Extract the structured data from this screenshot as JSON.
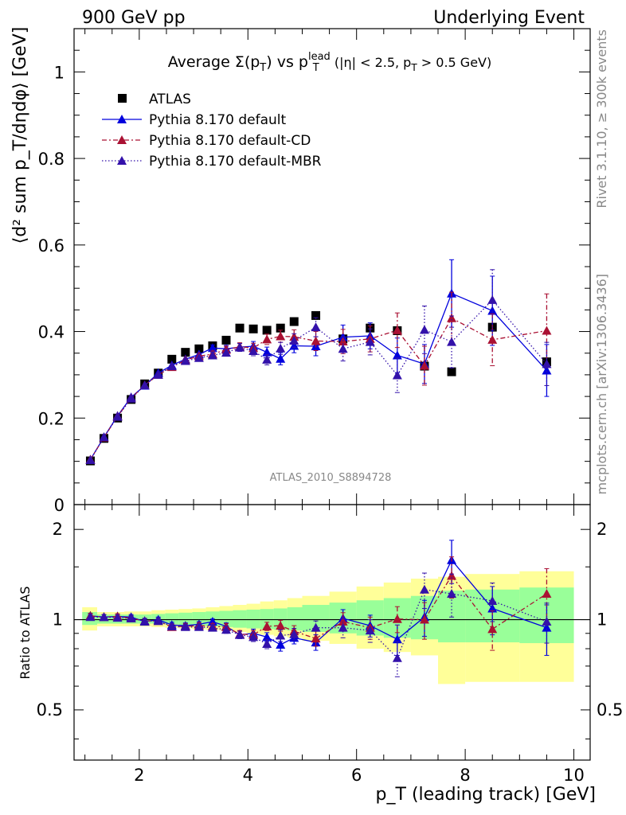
{
  "header": {
    "left": "900 GeV pp",
    "right": "Underlying Event"
  },
  "side_texts": {
    "rivet": "Rivet 3.1.10, ≥ 300k events",
    "mcplots": "mcplots.cern.ch [arXiv:1306.3436]"
  },
  "watermark": "ATLAS_2010_S8894728",
  "colors": {
    "atlas": "#000000",
    "default": "#0000dd",
    "cd": "#aa1133",
    "mbr": "#3311aa",
    "band_yellow": "#ffff99",
    "band_green": "#99ff99"
  },
  "chart_data": [
    {
      "type": "scatter",
      "panel": "main",
      "title_main": "Average Σ(p",
      "title_sub": "T",
      "title_mid": ") vs p",
      "title_sup": "lead",
      "title_sub2": "T",
      "title_tail": " (|η| < 2.5, p",
      "title_sub3": "T",
      "title_end": " > 0.5 GeV)",
      "ylabel": "⟨d² sum p_T/dηdφ⟩ [GeV]",
      "xlabel": "",
      "xlim": [
        0.8,
        10.3
      ],
      "ylim": [
        0,
        1.1
      ],
      "yticks": [
        0,
        0.2,
        0.4,
        0.6,
        0.8,
        1
      ],
      "ytick_labels": [
        "0",
        "0.2",
        "0.4",
        "0.6",
        "0.8",
        "1"
      ],
      "legend_position": "top-left",
      "series": [
        {
          "name": "ATLAS",
          "style": "square",
          "x": [
            1.1,
            1.35,
            1.6,
            1.85,
            2.1,
            2.35,
            2.6,
            2.85,
            3.1,
            3.35,
            3.6,
            3.85,
            4.1,
            4.35,
            4.6,
            4.85,
            5.25,
            5.75,
            6.25,
            6.75,
            7.25,
            7.75,
            8.5,
            9.5
          ],
          "y": [
            0.101,
            0.153,
            0.2,
            0.243,
            0.279,
            0.304,
            0.336,
            0.352,
            0.36,
            0.367,
            0.38,
            0.408,
            0.406,
            0.403,
            0.408,
            0.423,
            0.437,
            0.383,
            0.408,
            0.402,
            0.32,
            0.307,
            0.41,
            0.33
          ]
        },
        {
          "name": "Pythia 8.170 default",
          "style": "solid",
          "x": [
            1.1,
            1.35,
            1.6,
            1.85,
            2.1,
            2.35,
            2.6,
            2.85,
            3.1,
            3.35,
            3.6,
            3.85,
            4.1,
            4.35,
            4.6,
            4.85,
            5.25,
            5.75,
            6.25,
            6.75,
            7.25,
            7.75,
            8.5,
            9.5
          ],
          "y": [
            0.104,
            0.156,
            0.205,
            0.248,
            0.275,
            0.304,
            0.322,
            0.336,
            0.347,
            0.362,
            0.36,
            0.364,
            0.366,
            0.352,
            0.337,
            0.367,
            0.366,
            0.387,
            0.39,
            0.345,
            0.325,
            0.488,
            0.448,
            0.31
          ],
          "err": [
            0.003,
            0.003,
            0.003,
            0.003,
            0.004,
            0.004,
            0.005,
            0.006,
            0.006,
            0.007,
            0.008,
            0.009,
            0.011,
            0.012,
            0.014,
            0.016,
            0.022,
            0.028,
            0.03,
            0.04,
            0.045,
            0.078,
            0.08,
            0.06
          ]
        },
        {
          "name": "Pythia 8.170 default-CD",
          "style": "dashdot",
          "x": [
            1.1,
            1.35,
            1.6,
            1.85,
            2.1,
            2.35,
            2.6,
            2.85,
            3.1,
            3.35,
            3.6,
            3.85,
            4.1,
            4.35,
            4.6,
            4.85,
            5.25,
            5.75,
            6.25,
            6.75,
            7.25,
            7.75,
            8.5,
            9.5
          ],
          "y": [
            0.104,
            0.155,
            0.204,
            0.246,
            0.276,
            0.3,
            0.318,
            0.334,
            0.343,
            0.348,
            0.358,
            0.365,
            0.362,
            0.382,
            0.389,
            0.388,
            0.378,
            0.377,
            0.383,
            0.403,
            0.321,
            0.431,
            0.381,
            0.402
          ],
          "err": [
            0.003,
            0.003,
            0.003,
            0.003,
            0.004,
            0.004,
            0.005,
            0.006,
            0.006,
            0.007,
            0.008,
            0.009,
            0.011,
            0.012,
            0.014,
            0.016,
            0.022,
            0.028,
            0.03,
            0.04,
            0.045,
            0.06,
            0.06,
            0.085
          ]
        },
        {
          "name": "Pythia 8.170 default-MBR",
          "style": "dotted",
          "x": [
            1.1,
            1.35,
            1.6,
            1.85,
            2.1,
            2.35,
            2.6,
            2.85,
            3.1,
            3.35,
            3.6,
            3.85,
            4.1,
            4.35,
            4.6,
            4.85,
            5.25,
            5.75,
            6.25,
            6.75,
            7.25,
            7.75,
            8.5,
            9.5
          ],
          "y": [
            0.103,
            0.156,
            0.203,
            0.245,
            0.276,
            0.3,
            0.32,
            0.332,
            0.339,
            0.345,
            0.351,
            0.363,
            0.355,
            0.335,
            0.361,
            0.379,
            0.41,
            0.36,
            0.376,
            0.299,
            0.404,
            0.376,
            0.473,
            0.325
          ],
          "err": [
            0.003,
            0.003,
            0.003,
            0.003,
            0.004,
            0.004,
            0.005,
            0.006,
            0.006,
            0.007,
            0.008,
            0.009,
            0.011,
            0.012,
            0.014,
            0.016,
            0.022,
            0.028,
            0.03,
            0.04,
            0.055,
            0.06,
            0.07,
            0.05
          ]
        }
      ]
    },
    {
      "type": "scatter",
      "panel": "ratio",
      "ylabel": "Ratio to ATLAS",
      "xlabel": "p_T (leading track) [GeV]",
      "xlim": [
        0.8,
        10.3
      ],
      "ylim": [
        0.34,
        2.42
      ],
      "ylog": true,
      "xticks": [
        2,
        4,
        6,
        8,
        10
      ],
      "xtick_labels": [
        "2",
        "4",
        "6",
        "8",
        "10"
      ],
      "yticks": [
        0.5,
        1,
        2
      ],
      "ytick_labels": [
        "0.5",
        "1",
        "2"
      ],
      "band_edges": [
        0.95,
        1.225,
        1.475,
        1.725,
        1.975,
        2.225,
        2.475,
        2.725,
        2.975,
        3.225,
        3.475,
        3.725,
        3.975,
        4.225,
        4.475,
        4.725,
        5.0,
        5.5,
        6.0,
        6.5,
        7.0,
        7.5,
        8.0,
        9.0,
        10.0
      ],
      "band_green": [
        [
          0.96,
          1.06
        ],
        [
          0.97,
          1.04
        ],
        [
          0.97,
          1.04
        ],
        [
          0.97,
          1.04
        ],
        [
          0.97,
          1.04
        ],
        [
          0.97,
          1.045
        ],
        [
          0.965,
          1.05
        ],
        [
          0.96,
          1.055
        ],
        [
          0.955,
          1.06
        ],
        [
          0.95,
          1.065
        ],
        [
          0.945,
          1.07
        ],
        [
          0.94,
          1.075
        ],
        [
          0.935,
          1.08
        ],
        [
          0.93,
          1.085
        ],
        [
          0.925,
          1.09
        ],
        [
          0.92,
          1.1
        ],
        [
          0.91,
          1.12
        ],
        [
          0.9,
          1.14
        ],
        [
          0.885,
          1.16
        ],
        [
          0.87,
          1.18
        ],
        [
          0.86,
          1.2
        ],
        [
          0.84,
          1.25
        ],
        [
          0.84,
          1.26
        ],
        [
          0.835,
          1.28
        ]
      ],
      "band_yellow": [
        [
          0.92,
          1.1
        ],
        [
          0.95,
          1.06
        ],
        [
          0.95,
          1.06
        ],
        [
          0.95,
          1.065
        ],
        [
          0.95,
          1.065
        ],
        [
          0.945,
          1.075
        ],
        [
          0.94,
          1.08
        ],
        [
          0.935,
          1.085
        ],
        [
          0.93,
          1.09
        ],
        [
          0.925,
          1.1
        ],
        [
          0.92,
          1.11
        ],
        [
          0.91,
          1.12
        ],
        [
          0.9,
          1.13
        ],
        [
          0.89,
          1.15
        ],
        [
          0.88,
          1.16
        ],
        [
          0.87,
          1.18
        ],
        [
          0.85,
          1.2
        ],
        [
          0.83,
          1.24
        ],
        [
          0.8,
          1.29
        ],
        [
          0.78,
          1.33
        ],
        [
          0.76,
          1.37
        ],
        [
          0.61,
          1.39
        ],
        [
          0.62,
          1.42
        ],
        [
          0.62,
          1.45
        ]
      ],
      "series": [
        {
          "name": "Pythia 8.170 default",
          "style": "solid",
          "x": [
            1.1,
            1.35,
            1.6,
            1.85,
            2.1,
            2.35,
            2.6,
            2.85,
            3.1,
            3.35,
            3.6,
            3.85,
            4.1,
            4.35,
            4.6,
            4.85,
            5.25,
            5.75,
            6.25,
            6.75,
            7.25,
            7.75,
            8.5,
            9.5
          ],
          "y": [
            1.03,
            1.02,
            1.025,
            1.02,
            0.985,
            1.0,
            0.96,
            0.955,
            0.965,
            0.985,
            0.95,
            0.89,
            0.9,
            0.875,
            0.825,
            0.87,
            0.84,
            1.01,
            0.955,
            0.86,
            1.02,
            1.58,
            1.09,
            0.94
          ],
          "err": [
            0.02,
            0.02,
            0.02,
            0.02,
            0.02,
            0.02,
            0.02,
            0.02,
            0.02,
            0.02,
            0.025,
            0.025,
            0.03,
            0.03,
            0.04,
            0.04,
            0.05,
            0.07,
            0.08,
            0.1,
            0.14,
            0.26,
            0.2,
            0.18
          ]
        },
        {
          "name": "Pythia 8.170 default-CD",
          "style": "dashdot",
          "x": [
            1.1,
            1.35,
            1.6,
            1.85,
            2.1,
            2.35,
            2.6,
            2.85,
            3.1,
            3.35,
            3.6,
            3.85,
            4.1,
            4.35,
            4.6,
            4.85,
            5.25,
            5.75,
            6.25,
            6.75,
            7.25,
            7.75,
            8.5,
            9.5
          ],
          "y": [
            1.03,
            1.02,
            1.025,
            1.01,
            0.99,
            0.99,
            0.945,
            0.95,
            0.955,
            0.95,
            0.945,
            0.895,
            0.89,
            0.95,
            0.955,
            0.915,
            0.865,
            0.985,
            0.94,
            1.005,
            1.0,
            1.4,
            0.93,
            1.22
          ],
          "err": [
            0.02,
            0.02,
            0.02,
            0.02,
            0.02,
            0.02,
            0.02,
            0.02,
            0.02,
            0.02,
            0.025,
            0.025,
            0.03,
            0.03,
            0.04,
            0.04,
            0.05,
            0.07,
            0.08,
            0.1,
            0.14,
            0.22,
            0.14,
            0.26
          ]
        },
        {
          "name": "Pythia 8.170 default-MBR",
          "style": "dotted",
          "x": [
            1.1,
            1.35,
            1.6,
            1.85,
            2.1,
            2.35,
            2.6,
            2.85,
            3.1,
            3.35,
            3.6,
            3.85,
            4.1,
            4.35,
            4.6,
            4.85,
            5.25,
            5.75,
            6.25,
            6.75,
            7.25,
            7.75,
            8.5,
            9.5
          ],
          "y": [
            1.02,
            1.02,
            1.015,
            1.01,
            0.99,
            0.99,
            0.95,
            0.945,
            0.945,
            0.94,
            0.925,
            0.89,
            0.875,
            0.83,
            0.885,
            0.895,
            0.94,
            0.94,
            0.92,
            0.745,
            1.26,
            1.22,
            1.155,
            0.985
          ],
          "err": [
            0.02,
            0.02,
            0.02,
            0.02,
            0.02,
            0.02,
            0.02,
            0.02,
            0.02,
            0.02,
            0.025,
            0.025,
            0.03,
            0.03,
            0.04,
            0.04,
            0.05,
            0.07,
            0.08,
            0.1,
            0.17,
            0.2,
            0.17,
            0.15
          ]
        }
      ]
    }
  ]
}
